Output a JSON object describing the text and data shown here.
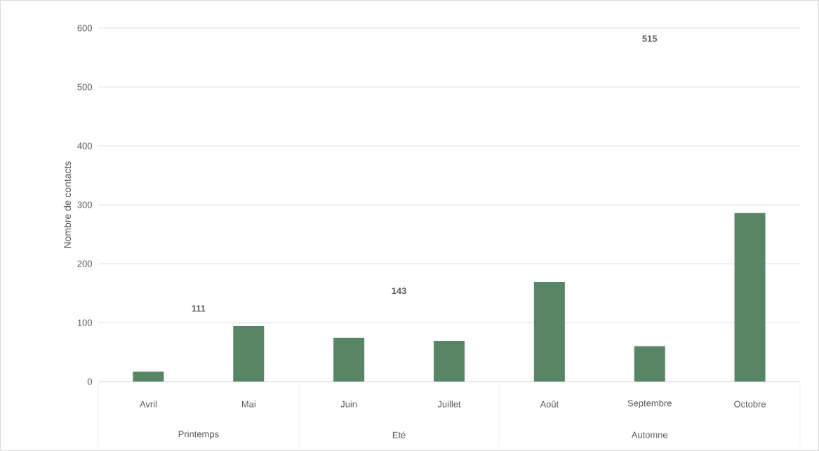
{
  "chart_data": {
    "type": "bar",
    "ylabel": "Nombre de contacts",
    "categories": [
      "Avril",
      "Mai",
      "Juin",
      "Juillet",
      "Août",
      "Septembre",
      "Octobre"
    ],
    "values": [
      17,
      94,
      74,
      69,
      169,
      60,
      286
    ],
    "color": "#588566",
    "ylim": [
      0,
      600
    ],
    "yticks": [
      0,
      100,
      200,
      300,
      400,
      500,
      600
    ],
    "grid": "y",
    "annotations": [
      "Printemps",
      "Eté",
      "Automne",
      "111",
      "143",
      "515"
    ]
  }
}
